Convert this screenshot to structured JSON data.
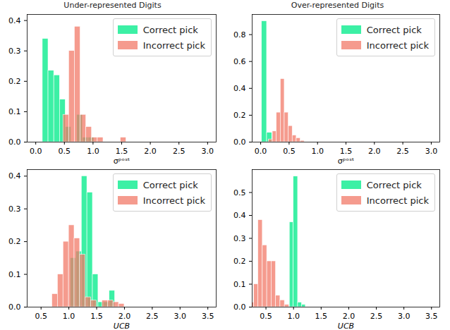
{
  "chart_data": [
    {
      "type": "histogram",
      "title": "Under-represented Digits",
      "x_label": "σᵖᵒˢᵗ",
      "xlim": [
        -0.15,
        3.15
      ],
      "xticks": [
        {
          "value": 0,
          "label": "0.0"
        },
        {
          "value": 0.5,
          "label": "0.5"
        },
        {
          "value": 1,
          "label": "1.0"
        },
        {
          "value": 1.5,
          "label": "1.5"
        },
        {
          "value": 2,
          "label": "2.0"
        },
        {
          "value": 2.5,
          "label": "2.5"
        },
        {
          "value": 3,
          "label": "3.0"
        }
      ],
      "ylim": [
        0,
        0.42
      ],
      "yticks": [
        {
          "value": 0,
          "label": "0.0"
        },
        0.1,
        0.2,
        0.3,
        0.4
      ],
      "legend": "upper right",
      "series": [
        {
          "name": "Correct pick",
          "color": "#3cf0a5",
          "bins": [
            0.12,
            0.22,
            0.32,
            0.42,
            0.52,
            0.62,
            0.72,
            0.82,
            0.92,
            1.02
          ],
          "values": [
            0.34,
            0.235,
            0.22,
            0.14,
            0.05,
            0.0,
            0.09,
            0.015,
            0.015
          ]
        },
        {
          "name": "Incorrect pick",
          "color": "#f17a68",
          "bins": [
            0.48,
            0.58,
            0.68,
            0.78,
            0.88,
            0.98,
            1.08,
            1.18,
            1.28,
            1.38,
            1.48,
            1.58
          ],
          "values": [
            0.09,
            0.3,
            0.38,
            0.09,
            0.05,
            0.015,
            0.015,
            0.0,
            0.0,
            0.0,
            0.015
          ]
        }
      ]
    },
    {
      "type": "histogram",
      "title": "Over-represented Digits",
      "x_label": "σᵖᵒˢᵗ",
      "xlim": [
        -0.15,
        3.15
      ],
      "xticks": [
        {
          "value": 0,
          "label": "0.0"
        },
        {
          "value": 0.5,
          "label": "0.5"
        },
        {
          "value": 1,
          "label": "1.0"
        },
        {
          "value": 1.5,
          "label": "1.5"
        },
        {
          "value": 2,
          "label": "2.0"
        },
        {
          "value": 2.5,
          "label": "2.5"
        },
        {
          "value": 3,
          "label": "3.0"
        }
      ],
      "ylim": [
        0,
        0.95
      ],
      "yticks": [
        {
          "value": 0,
          "label": "0.0"
        },
        0.2,
        0.4,
        0.6,
        0.8
      ],
      "legend": "upper right",
      "series": [
        {
          "name": "Correct pick",
          "color": "#3cf0a5",
          "bins": [
            0.02,
            0.11,
            0.2
          ],
          "values": [
            0.9,
            0.07
          ]
        },
        {
          "name": "Incorrect pick",
          "color": "#f17a68",
          "bins": [
            0.14,
            0.21,
            0.28,
            0.35,
            0.42,
            0.49,
            0.56,
            0.63,
            0.7,
            0.77
          ],
          "values": [
            0.02,
            0.08,
            0.22,
            0.47,
            0.22,
            0.12,
            0.05,
            0.03,
            0.01
          ]
        }
      ]
    },
    {
      "type": "histogram",
      "x_label": "UCB",
      "xlim": [
        0.25,
        3.65
      ],
      "xticks": [
        0.5,
        {
          "value": 1,
          "label": "1.0"
        },
        1.5,
        {
          "value": 2,
          "label": "2.0"
        },
        2.5,
        {
          "value": 3,
          "label": "3.0"
        },
        3.5
      ],
      "ylim": [
        0,
        0.42
      ],
      "yticks": [
        {
          "value": 0,
          "label": "0.0"
        },
        0.1,
        0.2,
        0.3,
        0.4
      ],
      "legend": "upper right",
      "series": [
        {
          "name": "Correct pick",
          "color": "#3cf0a5",
          "bins": [
            1.03,
            1.13,
            1.23,
            1.33,
            1.43,
            1.53,
            1.63,
            1.73,
            1.83
          ],
          "values": [
            0.15,
            0.17,
            0.4,
            0.35,
            0.1,
            0.015,
            0.015,
            0.05
          ]
        },
        {
          "name": "Incorrect pick",
          "color": "#f17a68",
          "bins": [
            0.7,
            0.8,
            0.9,
            1.0,
            1.1,
            1.2,
            1.3,
            1.4,
            1.5,
            1.6,
            1.7,
            1.8,
            1.9,
            2.0
          ],
          "values": [
            0.04,
            0.1,
            0.2,
            0.25,
            0.21,
            0.16,
            0.03,
            0.02,
            0.0,
            0.02,
            0.02,
            0.015,
            0.01
          ]
        }
      ]
    },
    {
      "type": "histogram",
      "x_label": "UCB",
      "xlim": [
        0.25,
        3.65
      ],
      "xticks": [
        0.5,
        {
          "value": 1,
          "label": "1.0"
        },
        1.5,
        {
          "value": 2,
          "label": "2.0"
        },
        2.5,
        {
          "value": 3,
          "label": "3.0"
        },
        3.5
      ],
      "ylim": [
        0,
        0.6
      ],
      "yticks": [
        {
          "value": 0,
          "label": "0.0"
        },
        0.1,
        0.2,
        0.3,
        0.4,
        0.5
      ],
      "legend": "upper right",
      "series": [
        {
          "name": "Correct pick",
          "color": "#3cf0a5",
          "bins": [
            0.93,
            1.0,
            1.08,
            1.15,
            1.22
          ],
          "values": [
            0.37,
            0.57,
            0.02,
            0.01
          ]
        },
        {
          "name": "Incorrect pick",
          "color": "#f17a68",
          "bins": [
            0.2,
            0.28,
            0.36,
            0.44,
            0.52,
            0.6,
            0.68,
            0.76,
            0.84,
            0.92
          ],
          "values": [
            0.02,
            0.1,
            0.38,
            0.27,
            0.2,
            0.2,
            0.05,
            0.03,
            0.01
          ]
        }
      ]
    }
  ]
}
